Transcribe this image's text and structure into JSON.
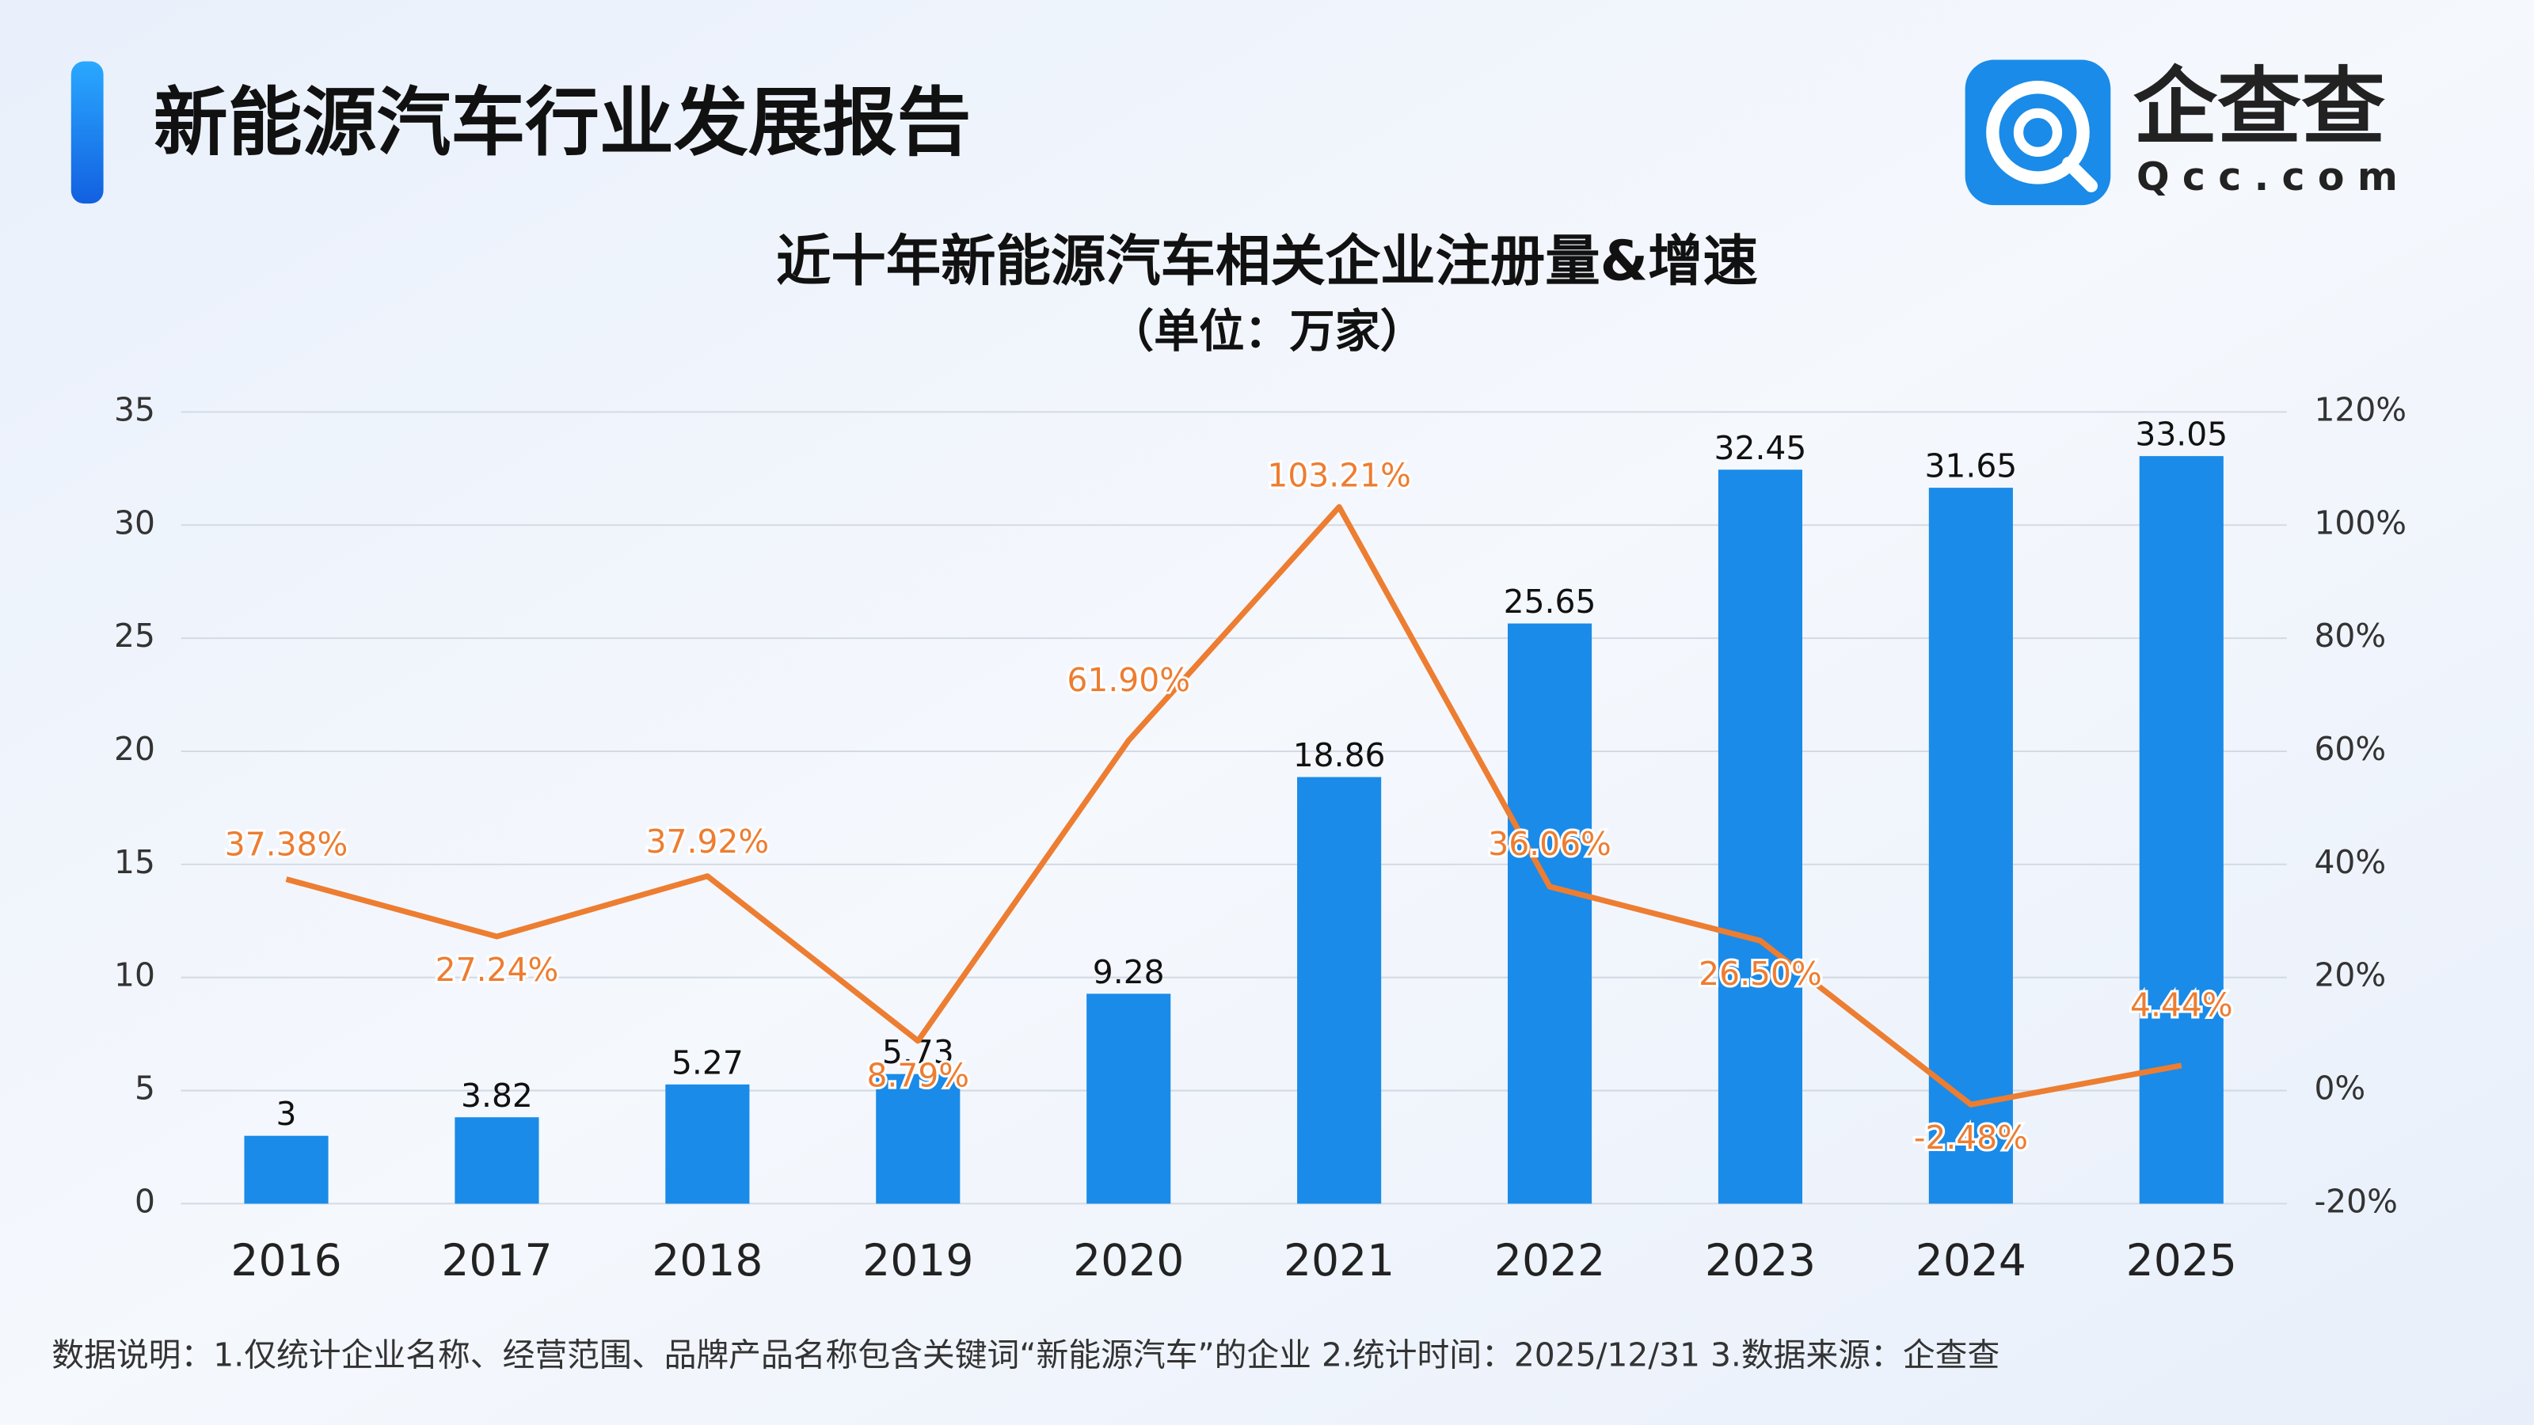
{
  "header": {
    "title": "新能源汽车行业发展报告",
    "logo_text": "企查查",
    "logo_domain": "Qcc.com"
  },
  "chart_data": {
    "type": "bar",
    "title": "近十年新能源汽车相关企业注册量&增速",
    "subtitle": "（单位：万家）",
    "categories": [
      "2016",
      "2017",
      "2018",
      "2019",
      "2020",
      "2021",
      "2022",
      "2023",
      "2024",
      "2025"
    ],
    "series": [
      {
        "type": "bar",
        "color": "#1a8be8",
        "values": [
          3,
          3.82,
          5.27,
          5.73,
          9.28,
          18.86,
          25.65,
          32.45,
          31.65,
          33.05
        ]
      },
      {
        "type": "line",
        "axis": "y2",
        "color": "#ed7d31",
        "values": [
          37.38,
          27.24,
          37.92,
          8.79,
          61.9,
          103.21,
          36.06,
          26.5,
          -2.48,
          4.44
        ],
        "value_labels": [
          "37.38%",
          "27.24%",
          "37.92%",
          "8.79%",
          "61.90%",
          "103.21%",
          "36.06%",
          "26.50%",
          "-2.48%",
          "4.44%"
        ]
      }
    ],
    "ylim": [
      0,
      35
    ],
    "yticks": [
      0,
      5,
      10,
      15,
      20,
      25,
      30,
      35
    ],
    "y2lim": [
      -20,
      120
    ],
    "y2ticks": [
      {
        "value": -20,
        "label": "-20%"
      },
      {
        "value": 0,
        "label": "0%"
      },
      {
        "value": 20,
        "label": "20%"
      },
      {
        "value": 40,
        "label": "40%"
      },
      {
        "value": 60,
        "label": "60%"
      },
      {
        "value": 80,
        "label": "80%"
      },
      {
        "value": 100,
        "label": "100%"
      },
      {
        "value": 120,
        "label": "120%"
      }
    ],
    "grid": true
  },
  "footnote": "数据说明：1.仅统计企业名称、经营范围、品牌产品名称包含关键词“新能源汽车”的企业   2.统计时间：2025/12/31    3.数据来源：企查查"
}
